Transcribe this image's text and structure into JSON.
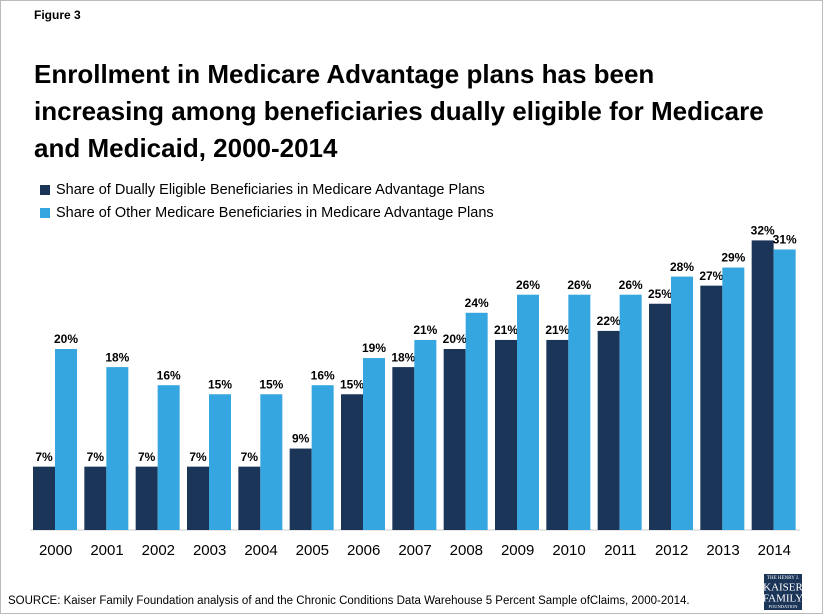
{
  "chart_data": {
    "type": "bar",
    "label": "Figure 3",
    "title": [
      "Enrollment in Medicare Advantage plans has been",
      "increasing among beneficiaries dually eligible for Medicare",
      "and Medicaid, 2000-2014"
    ],
    "categories": [
      "2000",
      "2001",
      "2002",
      "2003",
      "2004",
      "2005",
      "2006",
      "2007",
      "2008",
      "2009",
      "2010",
      "2011",
      "2012",
      "2013",
      "2014"
    ],
    "series": [
      {
        "name": "Share of Dually Eligible Beneficiaries in Medicare Advantage Plans",
        "color": "#1b3558",
        "values": [
          7,
          7,
          7,
          7,
          7,
          9,
          15,
          18,
          20,
          21,
          21,
          22,
          25,
          27,
          32
        ],
        "value_labels": [
          "7%",
          "7%",
          "7%",
          "7%",
          "7%",
          "9%",
          "15%",
          "18%",
          "20%",
          "21%",
          "21%",
          "22%",
          "25%",
          "27%",
          "32%"
        ]
      },
      {
        "name": "Share of Other Medicare Beneficiaries in Medicare Advantage Plans",
        "color": "#35a6df",
        "values": [
          20,
          18,
          16,
          15,
          15,
          16,
          19,
          21,
          24,
          26,
          26,
          26,
          28,
          29,
          31
        ],
        "value_labels": [
          "20%",
          "18%",
          "16%",
          "15%",
          "15%",
          "16%",
          "19%",
          "21%",
          "24%",
          "26%",
          "26%",
          "26%",
          "28%",
          "29%",
          "31%"
        ]
      }
    ],
    "source": "SOURCE: Kaiser Family Foundation analysis of and the Chronic Conditions Data Warehouse 5 Percent Sample ofClaims, 2000-2014.",
    "logo": [
      "THE HENRY J.",
      "KAISER",
      "FAMILY",
      "FOUNDATION"
    ]
  }
}
